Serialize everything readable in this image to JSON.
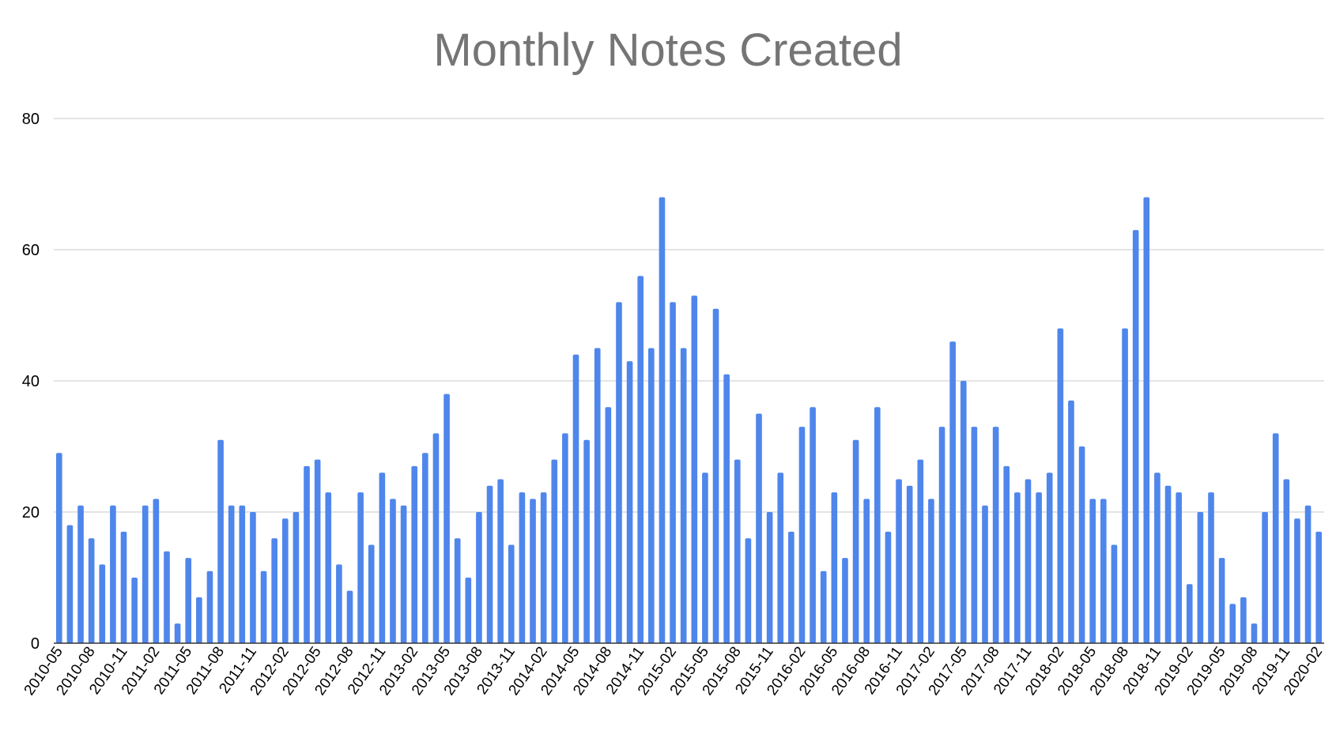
{
  "chart_data": {
    "type": "bar",
    "title": "Monthly Notes Created",
    "xlabel": "",
    "ylabel": "",
    "ylim": [
      0,
      80
    ],
    "yticks": [
      "0",
      "20",
      "40",
      "60",
      "80"
    ],
    "grid": true,
    "bar_color": "#4F86EC",
    "gridline_color": "#c8c8c8",
    "axis_line_color": "#333333",
    "label_color": "#000000",
    "title_color": "#757575",
    "tick_every": 3,
    "categories": [
      "2010-05",
      "2010-06",
      "2010-07",
      "2010-08",
      "2010-09",
      "2010-10",
      "2010-11",
      "2010-12",
      "2011-01",
      "2011-02",
      "2011-03",
      "2011-04",
      "2011-05",
      "2011-06",
      "2011-07",
      "2011-08",
      "2011-09",
      "2011-10",
      "2011-11",
      "2011-12",
      "2012-01",
      "2012-02",
      "2012-03",
      "2012-04",
      "2012-05",
      "2012-06",
      "2012-07",
      "2012-08",
      "2012-09",
      "2012-10",
      "2012-11",
      "2012-12",
      "2013-01",
      "2013-02",
      "2013-03",
      "2013-04",
      "2013-05",
      "2013-06",
      "2013-07",
      "2013-08",
      "2013-09",
      "2013-10",
      "2013-11",
      "2013-12",
      "2014-01",
      "2014-02",
      "2014-03",
      "2014-04",
      "2014-05",
      "2014-06",
      "2014-07",
      "2014-08",
      "2014-09",
      "2014-10",
      "2014-11",
      "2014-12",
      "2015-01",
      "2015-02",
      "2015-03",
      "2015-04",
      "2015-05",
      "2015-06",
      "2015-07",
      "2015-08",
      "2015-09",
      "2015-10",
      "2015-11",
      "2015-12",
      "2016-01",
      "2016-02",
      "2016-03",
      "2016-04",
      "2016-05",
      "2016-06",
      "2016-07",
      "2016-08",
      "2016-09",
      "2016-10",
      "2016-11",
      "2016-12",
      "2017-01",
      "2017-02",
      "2017-03",
      "2017-04",
      "2017-05",
      "2017-06",
      "2017-07",
      "2017-08",
      "2017-09",
      "2017-10",
      "2017-11",
      "2017-12",
      "2018-01",
      "2018-02",
      "2018-03",
      "2018-04",
      "2018-05",
      "2018-06",
      "2018-07",
      "2018-08",
      "2018-09",
      "2018-10",
      "2018-11",
      "2018-12",
      "2019-01",
      "2019-02",
      "2019-03",
      "2019-04",
      "2019-05",
      "2019-06",
      "2019-07",
      "2019-08",
      "2019-09",
      "2019-10",
      "2019-11",
      "2019-12",
      "2020-01",
      "2020-02"
    ],
    "values": [
      29,
      18,
      21,
      16,
      12,
      21,
      17,
      10,
      21,
      22,
      14,
      3,
      13,
      7,
      11,
      31,
      21,
      21,
      20,
      11,
      16,
      19,
      20,
      27,
      28,
      23,
      12,
      8,
      23,
      15,
      26,
      22,
      21,
      27,
      29,
      32,
      38,
      16,
      10,
      20,
      24,
      25,
      15,
      23,
      22,
      23,
      28,
      32,
      44,
      31,
      45,
      36,
      52,
      43,
      56,
      45,
      68,
      52,
      45,
      53,
      26,
      51,
      41,
      28,
      16,
      35,
      20,
      26,
      17,
      33,
      36,
      11,
      23,
      13,
      31,
      22,
      36,
      17,
      25,
      24,
      28,
      22,
      33,
      46,
      40,
      33,
      21,
      33,
      27,
      23,
      25,
      23,
      26,
      48,
      37,
      30,
      22,
      22,
      15,
      48,
      63,
      68,
      26,
      24,
      23,
      9,
      20,
      23,
      13,
      6,
      7,
      3,
      20,
      32,
      25,
      19,
      21,
      17
    ]
  }
}
